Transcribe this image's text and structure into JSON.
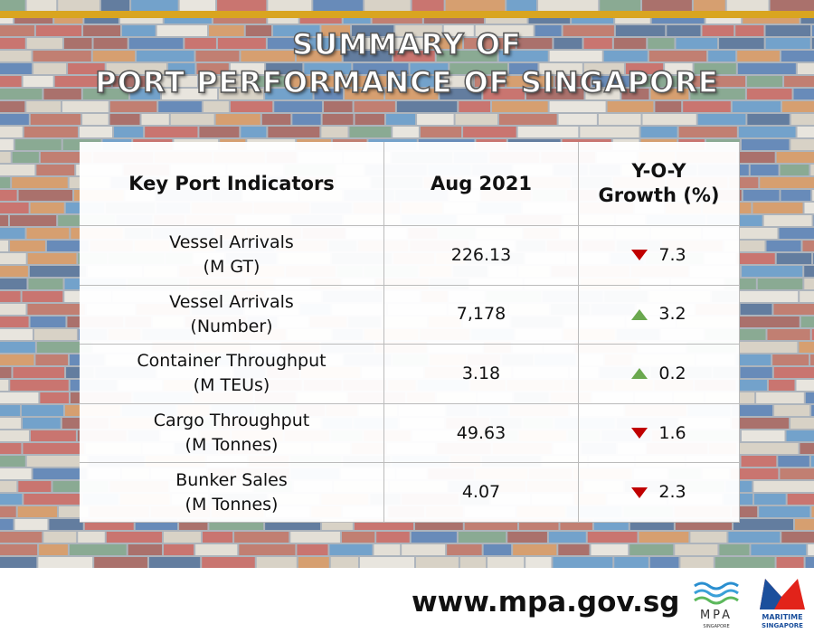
{
  "header": {
    "title_lines": [
      "SUMMARY OF",
      "PORT PERFORMANCE OF SINGAPORE"
    ]
  },
  "table": {
    "columns": [
      "Key Port Indicators",
      "Aug 2021",
      [
        "Y-O-Y",
        "Growth (%)"
      ]
    ],
    "rows": [
      {
        "indicator": [
          "Vessel Arrivals",
          "(M GT)"
        ],
        "value": "226.13",
        "growth": "7.3",
        "direction": "down"
      },
      {
        "indicator": [
          "Vessel Arrivals",
          "(Number)"
        ],
        "value": "7,178",
        "growth": "3.2",
        "direction": "up"
      },
      {
        "indicator": [
          "Container Throughput",
          "(M TEUs)"
        ],
        "value": "3.18",
        "growth": "0.2",
        "direction": "up"
      },
      {
        "indicator": [
          "Cargo Throughput",
          "(M Tonnes)"
        ],
        "value": "49.63",
        "growth": "1.6",
        "direction": "down"
      },
      {
        "indicator": [
          "Bunker Sales",
          "(M Tonnes)"
        ],
        "value": "4.07",
        "growth": "2.3",
        "direction": "down"
      }
    ]
  },
  "footer": {
    "url": "www.mpa.gov.sg",
    "logos": [
      {
        "name": "MPA",
        "sub": "SINGAPORE"
      },
      {
        "name": "MARITIME",
        "sub": "SINGAPORE"
      }
    ]
  }
}
